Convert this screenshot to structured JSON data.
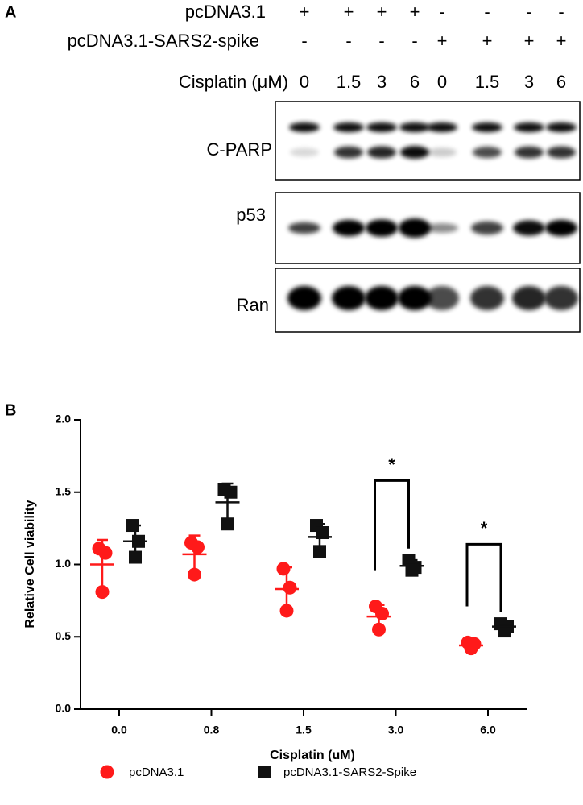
{
  "panel_a": {
    "label": "A",
    "rows": [
      {
        "name": "pcDNA3.1",
        "signs": [
          "+",
          "+",
          "+",
          "+",
          "-",
          "-",
          "-",
          "-"
        ]
      },
      {
        "name": "pcDNA3.1-SARS2-spike",
        "signs": [
          "-",
          "-",
          "-",
          "-",
          "+",
          "+",
          "+",
          "+"
        ]
      }
    ],
    "dose_label": "Cisplatin (μM)",
    "doses": [
      "0",
      "1.5",
      "3",
      "6",
      "0",
      "1.5",
      "3",
      "6"
    ],
    "blots": [
      "C-PARP",
      "p53",
      "Ran"
    ]
  },
  "chart_data": {
    "type": "scatter",
    "panel_label": "B",
    "xlabel": "Cisplatin (uM)",
    "ylabel": "Relative Cell viability",
    "categories": [
      "0.0",
      "0.8",
      "1.5",
      "3.0",
      "6.0"
    ],
    "ylim": [
      0,
      2.0
    ],
    "yticks": [
      {
        "value": 0,
        "label": "0.0"
      },
      {
        "value": 0.5,
        "label": "0.5"
      },
      {
        "value": 1.0,
        "label": "1.0"
      },
      {
        "value": 1.5,
        "label": "1.5"
      },
      {
        "value": 2.0,
        "label": "2.0"
      }
    ],
    "series": [
      {
        "name": "pcDNA3.1",
        "color": "#ff1a1a",
        "marker": "circle",
        "values": [
          [
            1.11,
            1.08,
            0.81
          ],
          [
            1.15,
            1.12,
            0.93
          ],
          [
            0.97,
            0.84,
            0.68
          ],
          [
            0.71,
            0.66,
            0.55
          ],
          [
            0.46,
            0.45,
            0.42
          ]
        ],
        "mean": [
          1.0,
          1.07,
          0.83,
          0.64,
          0.44
        ],
        "sd": [
          0.17,
          0.13,
          0.15,
          0.08,
          0.02
        ]
      },
      {
        "name": "pcDNA3.1-SARS2-Spike",
        "color": "#111111",
        "marker": "square",
        "values": [
          [
            1.27,
            1.16,
            1.05
          ],
          [
            1.52,
            1.5,
            1.28
          ],
          [
            1.27,
            1.22,
            1.09
          ],
          [
            1.03,
            0.98,
            0.96
          ],
          [
            0.59,
            0.57,
            0.54
          ]
        ],
        "mean": [
          1.16,
          1.43,
          1.19,
          0.99,
          0.57
        ],
        "sd": [
          0.11,
          0.13,
          0.09,
          0.04,
          0.03
        ]
      }
    ],
    "significance": [
      null,
      null,
      null,
      "*",
      "*"
    ]
  }
}
